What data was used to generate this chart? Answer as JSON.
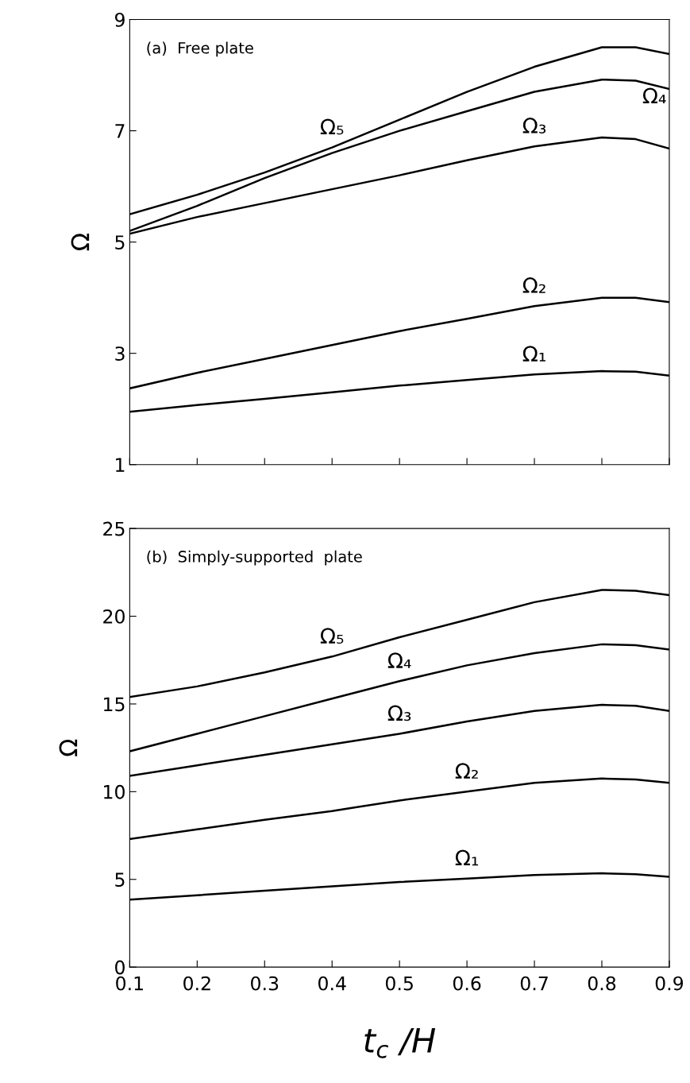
{
  "chart_data": [
    {
      "type": "line",
      "title": "(a)  Free plate",
      "ylabel": "Ω",
      "x": [
        0.1,
        0.2,
        0.3,
        0.4,
        0.5,
        0.6,
        0.7,
        0.8,
        0.85,
        0.9
      ],
      "xlim": [
        0.1,
        0.9
      ],
      "xticks": [
        0.1,
        0.2,
        0.3,
        0.4,
        0.5,
        0.6,
        0.7,
        0.8,
        0.9
      ],
      "ylim": [
        1,
        9
      ],
      "yticks": [
        1,
        3,
        5,
        7,
        9
      ],
      "tick_labels": "y",
      "grid": false,
      "legend": false,
      "series": [
        {
          "name": "Ω₅",
          "color": "#000000",
          "values": [
            5.5,
            5.85,
            6.25,
            6.7,
            7.2,
            7.7,
            8.15,
            8.5,
            8.5,
            8.38
          ]
        },
        {
          "name": "Ω₄",
          "color": "#000000",
          "values": [
            5.2,
            5.65,
            6.15,
            6.6,
            7.0,
            7.35,
            7.7,
            7.92,
            7.9,
            7.75
          ]
        },
        {
          "name": "Ω₃",
          "color": "#000000",
          "values": [
            5.15,
            5.45,
            5.7,
            5.95,
            6.2,
            6.47,
            6.72,
            6.88,
            6.85,
            6.68
          ]
        },
        {
          "name": "Ω₂",
          "color": "#000000",
          "values": [
            2.37,
            2.65,
            2.9,
            3.15,
            3.4,
            3.62,
            3.85,
            4.0,
            4.0,
            3.92
          ]
        },
        {
          "name": "Ω₁",
          "color": "#000000",
          "values": [
            1.95,
            2.07,
            2.18,
            2.3,
            2.42,
            2.52,
            2.62,
            2.68,
            2.67,
            2.6
          ]
        }
      ]
    },
    {
      "type": "line",
      "title": "(b)  Simply-supported  plate",
      "ylabel": "Ω",
      "xlabel": "t$_{c}$ /H",
      "x": [
        0.1,
        0.2,
        0.3,
        0.4,
        0.5,
        0.6,
        0.7,
        0.8,
        0.85,
        0.9
      ],
      "xlim": [
        0.1,
        0.9
      ],
      "xticks": [
        0.1,
        0.2,
        0.3,
        0.4,
        0.5,
        0.6,
        0.7,
        0.8,
        0.9
      ],
      "ylim": [
        0,
        25
      ],
      "yticks": [
        0,
        5,
        10,
        15,
        20,
        25
      ],
      "grid": false,
      "legend": false,
      "series": [
        {
          "name": "Ω₅",
          "color": "#000000",
          "values": [
            15.4,
            16.0,
            16.8,
            17.7,
            18.8,
            19.8,
            20.8,
            21.5,
            21.45,
            21.2
          ]
        },
        {
          "name": "Ω₄",
          "color": "#000000",
          "values": [
            12.3,
            13.3,
            14.3,
            15.3,
            16.3,
            17.2,
            17.9,
            18.4,
            18.35,
            18.1
          ]
        },
        {
          "name": "Ω₃",
          "color": "#000000",
          "values": [
            10.9,
            11.5,
            12.1,
            12.7,
            13.3,
            14.0,
            14.6,
            14.95,
            14.9,
            14.6
          ]
        },
        {
          "name": "Ω₂",
          "color": "#000000",
          "values": [
            7.3,
            7.85,
            8.4,
            8.9,
            9.5,
            10.0,
            10.5,
            10.75,
            10.7,
            10.5
          ]
        },
        {
          "name": "Ω₁",
          "color": "#000000",
          "values": [
            3.85,
            4.1,
            4.35,
            4.6,
            4.85,
            5.05,
            5.25,
            5.35,
            5.3,
            5.15
          ]
        }
      ]
    }
  ]
}
